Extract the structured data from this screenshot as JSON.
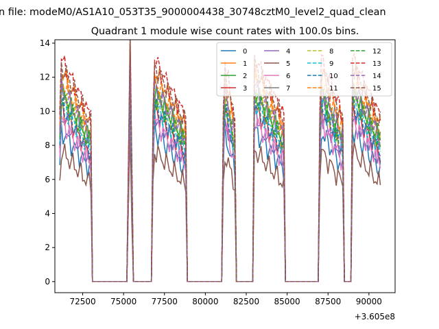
{
  "figure": {
    "suptitle": "n file: modeM0/AS1A10_053T35_9000004438_30748cztM0_level2_quad_clean",
    "title": "Quadrant 1 module wise count rates with 100.0s bins.",
    "offset_text": "+3.605e8"
  },
  "chart_data": {
    "type": "line",
    "title": "Quadrant 1 module wise count rates with 100.0s bins.",
    "xlabel": "",
    "ylabel": "",
    "x_offset": 360500000,
    "xlim": [
      70800,
      91600
    ],
    "ylim": [
      -0.65,
      14.2
    ],
    "xticks": [
      72500,
      75000,
      77500,
      80000,
      82500,
      85000,
      87500,
      90000
    ],
    "xtick_labels": [
      "72500",
      "75000",
      "77500",
      "80000",
      "82500",
      "85000",
      "87500",
      "90000"
    ],
    "yticks": [
      0,
      2,
      4,
      6,
      8,
      10,
      12,
      14
    ],
    "ytick_labels": [
      "0",
      "2",
      "4",
      "6",
      "8",
      "10",
      "12",
      "14"
    ],
    "grid": false,
    "legend": {
      "placement": "upper right",
      "columns": 4
    },
    "segments": [
      [
        71100,
        73000
      ],
      [
        75250,
        75550
      ],
      [
        76800,
        78800
      ],
      [
        81100,
        81800
      ],
      [
        82950,
        84850
      ],
      [
        87000,
        88450
      ],
      [
        88950,
        90700
      ]
    ],
    "series": [
      {
        "name": "0",
        "color": "#1f77b4",
        "dash": "solid",
        "level": 7.6
      },
      {
        "name": "1",
        "color": "#ff7f0e",
        "dash": "solid",
        "level": 10.6
      },
      {
        "name": "2",
        "color": "#2ca02c",
        "dash": "solid",
        "level": 9.6
      },
      {
        "name": "3",
        "color": "#d62728",
        "dash": "solid",
        "level": 8.7
      },
      {
        "name": "4",
        "color": "#9467bd",
        "dash": "solid",
        "level": 8.4
      },
      {
        "name": "5",
        "color": "#8c564b",
        "dash": "solid",
        "level": 6.6
      },
      {
        "name": "6",
        "color": "#e377c2",
        "dash": "solid",
        "level": 8.1
      },
      {
        "name": "7",
        "color": "#7f7f7f",
        "dash": "solid",
        "level": 9.9
      },
      {
        "name": "8",
        "color": "#bcbd22",
        "dash": "dashed",
        "level": 9.3
      },
      {
        "name": "9",
        "color": "#17becf",
        "dash": "dashed",
        "level": 9.0
      },
      {
        "name": "10",
        "color": "#1f77b4",
        "dash": "dashed",
        "level": 8.9
      },
      {
        "name": "11",
        "color": "#ff7f0e",
        "dash": "dashed",
        "level": 10.2
      },
      {
        "name": "12",
        "color": "#2ca02c",
        "dash": "dashed",
        "level": 9.4
      },
      {
        "name": "13",
        "color": "#d62728",
        "dash": "dashed",
        "level": 11.2
      },
      {
        "name": "14",
        "color": "#9467bd",
        "dash": "dashed",
        "level": 9.7
      },
      {
        "name": "15",
        "color": "#8c564b",
        "dash": "dashed",
        "level": 10.9
      }
    ]
  }
}
